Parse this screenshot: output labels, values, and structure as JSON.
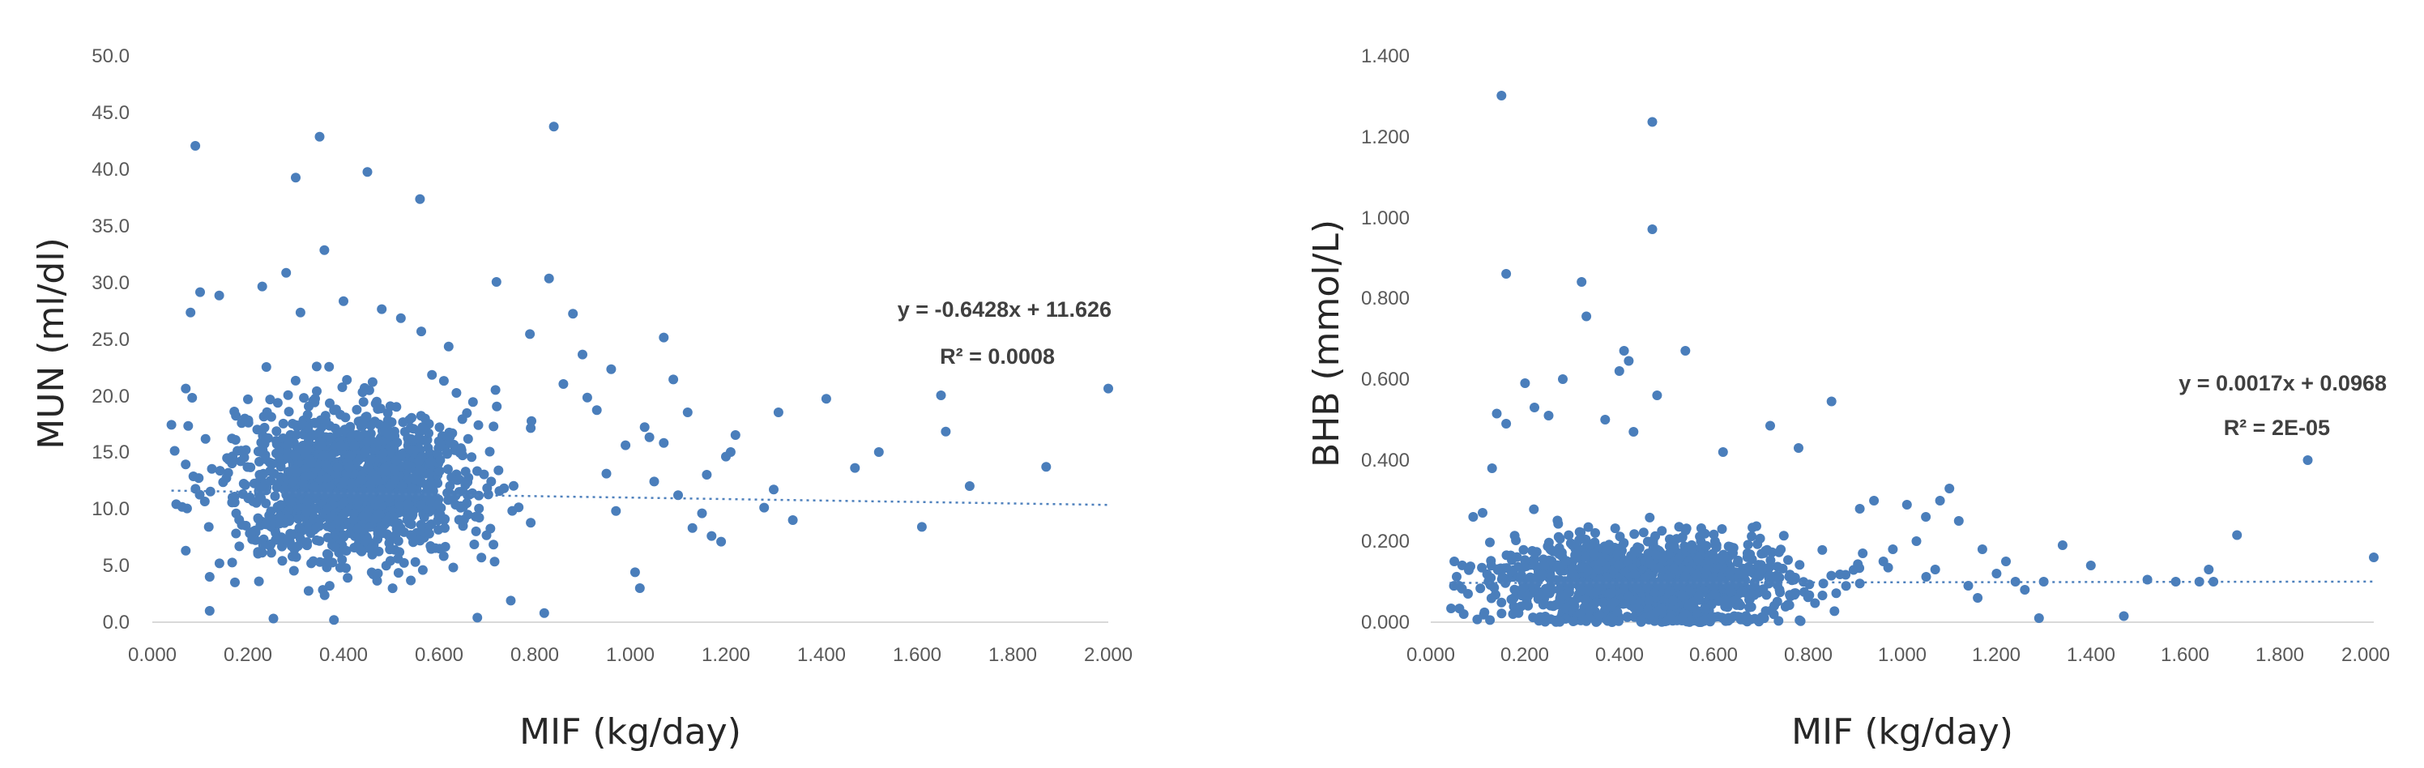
{
  "colors": {
    "marker": "#4a7ebb",
    "trendline": "#4f81bd",
    "axis_text": "#595959",
    "title_text": "#262626"
  },
  "chart_data": [
    {
      "type": "scatter",
      "title": "",
      "xlabel": "MIF (kg/day)",
      "ylabel": "MUN (ml/dl)",
      "xlim": [
        0,
        2
      ],
      "ylim": [
        0,
        50
      ],
      "x_ticks": [
        "0.000",
        "0.200",
        "0.400",
        "0.600",
        "0.800",
        "1.000",
        "1.200",
        "1.400",
        "1.600",
        "1.800",
        "2.000"
      ],
      "y_ticks": [
        "0.0",
        "5.0",
        "10.0",
        "15.0",
        "20.0",
        "25.0",
        "30.0",
        "35.0",
        "40.0",
        "45.0",
        "50.0"
      ],
      "grid": false,
      "legend": "none",
      "trendline": {
        "type": "linear",
        "slope": -0.6428,
        "intercept": 11.626,
        "style": "dotted"
      },
      "annotations": [
        "y = -0.6428x + 11.626",
        "R² = 0.0008"
      ],
      "dense_cloud": {
        "center": [
          0.42,
          12.3
        ],
        "spread": [
          0.12,
          3.4
        ],
        "count": 1400
      },
      "series": [
        {
          "name": "",
          "points": [
            [
              0.09,
              42.0
            ],
            [
              0.35,
              42.8
            ],
            [
              0.3,
              39.2
            ],
            [
              0.45,
              39.7
            ],
            [
              0.56,
              37.3
            ],
            [
              0.36,
              32.8
            ],
            [
              0.84,
              43.7
            ],
            [
              0.28,
              30.8
            ],
            [
              0.1,
              29.1
            ],
            [
              0.14,
              28.8
            ],
            [
              0.72,
              30.0
            ],
            [
              0.83,
              30.3
            ],
            [
              0.31,
              27.3
            ],
            [
              0.4,
              28.3
            ],
            [
              0.52,
              26.8
            ],
            [
              0.08,
              27.3
            ],
            [
              0.23,
              29.6
            ],
            [
              0.48,
              27.6
            ],
            [
              0.62,
              24.3
            ],
            [
              0.79,
              25.4
            ],
            [
              0.9,
              23.6
            ],
            [
              0.96,
              22.3
            ],
            [
              1.07,
              25.1
            ],
            [
              1.09,
              21.4
            ],
            [
              0.88,
              27.2
            ],
            [
              0.04,
              17.4
            ],
            [
              0.07,
              20.6
            ],
            [
              0.05,
              10.4
            ],
            [
              0.07,
              6.3
            ],
            [
              0.12,
              4.0
            ],
            [
              0.12,
              1.0
            ],
            [
              0.38,
              0.2
            ],
            [
              0.68,
              0.4
            ],
            [
              0.75,
              1.9
            ],
            [
              0.82,
              0.8
            ],
            [
              1.02,
              3.0
            ],
            [
              1.01,
              4.4
            ],
            [
              1.13,
              8.3
            ],
            [
              1.17,
              7.6
            ],
            [
              1.19,
              7.1
            ],
            [
              1.1,
              11.2
            ],
            [
              1.15,
              9.6
            ],
            [
              1.16,
              13.0
            ],
            [
              1.2,
              14.6
            ],
            [
              1.22,
              16.5
            ],
            [
              1.21,
              15.0
            ],
            [
              1.28,
              10.1
            ],
            [
              1.3,
              11.7
            ],
            [
              1.34,
              9.0
            ],
            [
              1.31,
              18.5
            ],
            [
              1.41,
              19.7
            ],
            [
              1.47,
              13.6
            ],
            [
              1.52,
              15.0
            ],
            [
              1.61,
              8.4
            ],
            [
              1.65,
              20.0
            ],
            [
              1.66,
              16.8
            ],
            [
              1.71,
              12.0
            ],
            [
              1.87,
              13.7
            ],
            [
              2.0,
              20.6
            ],
            [
              1.03,
              17.2
            ],
            [
              0.99,
              15.6
            ],
            [
              0.95,
              13.1
            ],
            [
              0.93,
              18.7
            ],
            [
              1.05,
              12.4
            ],
            [
              0.97,
              9.8
            ],
            [
              1.12,
              18.5
            ],
            [
              0.91,
              19.8
            ],
            [
              0.86,
              21.0
            ],
            [
              1.07,
              15.8
            ],
            [
              1.04,
              16.3
            ]
          ]
        }
      ]
    },
    {
      "type": "scatter",
      "title": "",
      "xlabel": "MIF (kg/day)",
      "ylabel": "BHB (mmol/L)",
      "xlim": [
        0,
        2
      ],
      "ylim": [
        0,
        1.4
      ],
      "x_ticks": [
        "0.000",
        "0.200",
        "0.400",
        "0.600",
        "0.800",
        "1.000",
        "1.200",
        "1.400",
        "1.600",
        "1.800",
        "2.000"
      ],
      "y_ticks": [
        "0.000",
        "0.200",
        "0.400",
        "0.600",
        "0.800",
        "1.000",
        "1.200",
        "1.400"
      ],
      "grid": false,
      "legend": "none",
      "trendline": {
        "type": "linear",
        "slope": 0.0017,
        "intercept": 0.0968,
        "style": "dotted"
      },
      "annotations": [
        "y = 0.0017x + 0.0968",
        "R² = 2E-05"
      ],
      "dense_cloud": {
        "center": [
          0.45,
          0.1
        ],
        "spread": [
          0.16,
          0.055
        ],
        "count": 1300
      },
      "series": [
        {
          "name": "",
          "points": [
            [
              0.15,
              1.3
            ],
            [
              0.47,
              1.235
            ],
            [
              0.47,
              0.97
            ],
            [
              0.16,
              0.86
            ],
            [
              0.32,
              0.84
            ],
            [
              0.33,
              0.755
            ],
            [
              0.54,
              0.67
            ],
            [
              0.41,
              0.67
            ],
            [
              0.28,
              0.6
            ],
            [
              0.4,
              0.62
            ],
            [
              0.42,
              0.645
            ],
            [
              0.2,
              0.59
            ],
            [
              0.85,
              0.545
            ],
            [
              0.48,
              0.56
            ],
            [
              0.14,
              0.515
            ],
            [
              0.16,
              0.49
            ],
            [
              0.25,
              0.51
            ],
            [
              0.22,
              0.53
            ],
            [
              0.37,
              0.5
            ],
            [
              0.43,
              0.47
            ],
            [
              0.72,
              0.485
            ],
            [
              0.62,
              0.42
            ],
            [
              0.78,
              0.43
            ],
            [
              1.1,
              0.33
            ],
            [
              1.08,
              0.3
            ],
            [
              1.01,
              0.29
            ],
            [
              0.94,
              0.3
            ],
            [
              0.91,
              0.28
            ],
            [
              1.05,
              0.26
            ],
            [
              1.12,
              0.25
            ],
            [
              1.17,
              0.18
            ],
            [
              1.22,
              0.15
            ],
            [
              1.2,
              0.12
            ],
            [
              1.24,
              0.1
            ],
            [
              1.26,
              0.08
            ],
            [
              1.3,
              0.1
            ],
            [
              1.29,
              0.01
            ],
            [
              1.34,
              0.19
            ],
            [
              1.4,
              0.14
            ],
            [
              1.47,
              0.015
            ],
            [
              1.52,
              0.105
            ],
            [
              1.58,
              0.1
            ],
            [
              1.63,
              0.1
            ],
            [
              1.65,
              0.13
            ],
            [
              1.66,
              0.1
            ],
            [
              1.71,
              0.215
            ],
            [
              1.86,
              0.4
            ],
            [
              2.0,
              0.16
            ],
            [
              0.07,
              0.02
            ],
            [
              0.06,
              0.09
            ],
            [
              0.05,
              0.15
            ],
            [
              0.09,
              0.26
            ],
            [
              0.13,
              0.38
            ],
            [
              0.11,
              0.27
            ],
            [
              0.98,
              0.18
            ],
            [
              1.03,
              0.2
            ],
            [
              0.96,
              0.15
            ],
            [
              1.07,
              0.13
            ],
            [
              1.14,
              0.09
            ],
            [
              1.16,
              0.06
            ]
          ]
        }
      ]
    }
  ]
}
